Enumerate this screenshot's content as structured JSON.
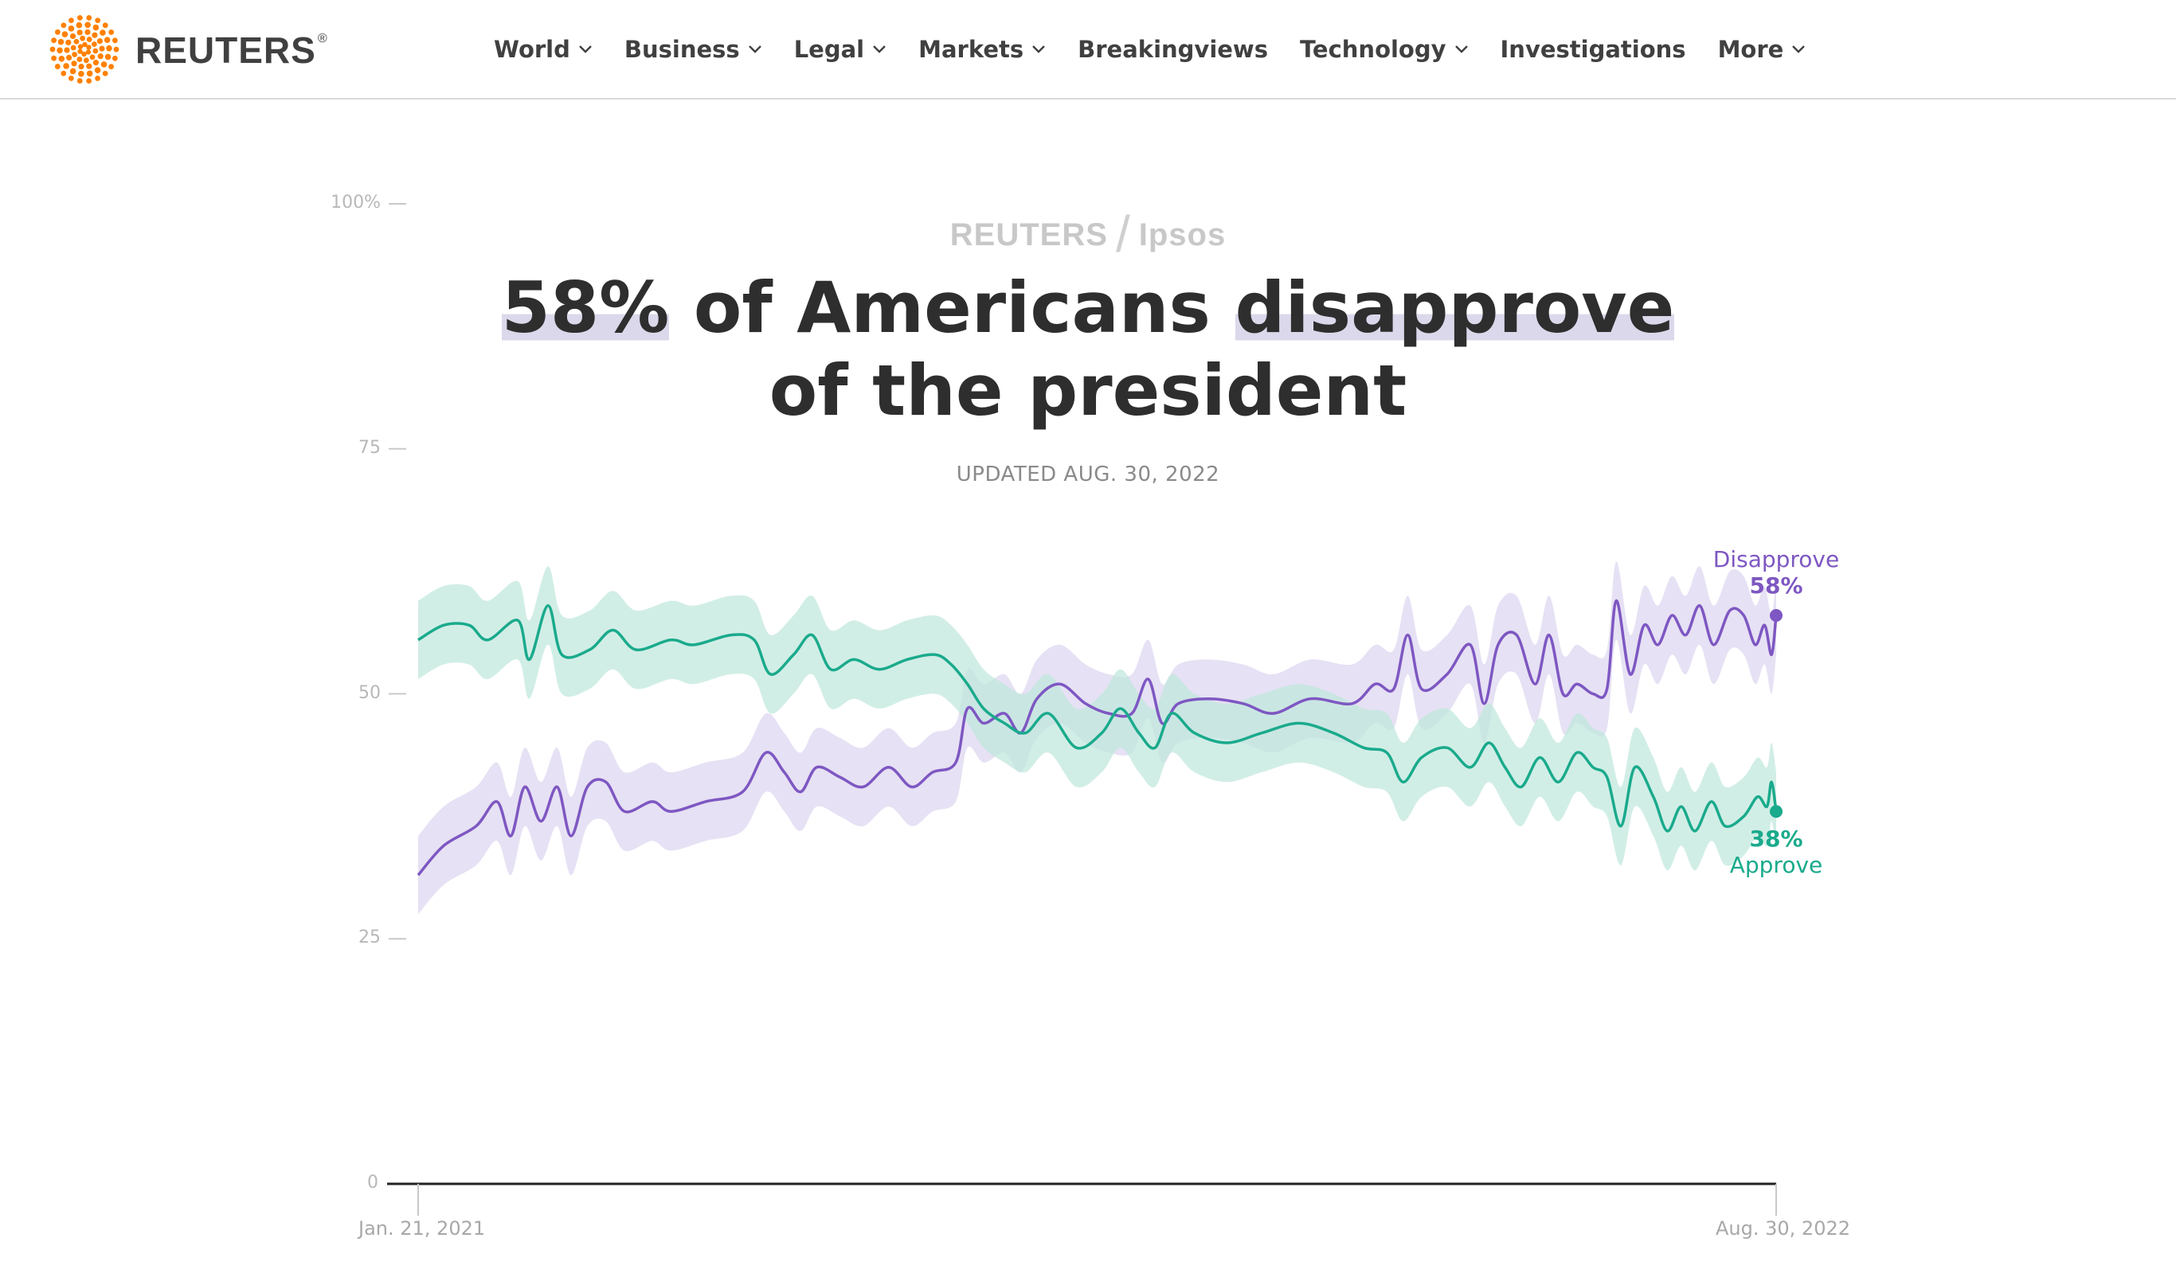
{
  "header": {
    "logo_text": "REUTERS",
    "logo_mark": "®",
    "nav": [
      {
        "label": "World",
        "dropdown": true
      },
      {
        "label": "Business",
        "dropdown": true
      },
      {
        "label": "Legal",
        "dropdown": true
      },
      {
        "label": "Markets",
        "dropdown": true
      },
      {
        "label": "Breakingviews",
        "dropdown": false
      },
      {
        "label": "Technology",
        "dropdown": true
      },
      {
        "label": "Investigations",
        "dropdown": false
      },
      {
        "label": "More",
        "dropdown": true
      }
    ]
  },
  "colors": {
    "brand_orange": "#ff8000",
    "disapprove": "#7e57c2",
    "disapprove_band": "#ddd6f0",
    "approve": "#1aaa8c",
    "approve_band": "#bfe8dd",
    "headline_highlight": "#dcd8eb"
  },
  "chart": {
    "brand_left": "REUTERS",
    "brand_separator": "/",
    "brand_right": "Ipsos",
    "headline_part1": "58%",
    "headline_part2": " of Americans ",
    "headline_part3": "disapprove",
    "headline_line2": "of the president",
    "updated": "UPDATED AUG. 30, 2022",
    "disapprove_label": "Disapprove",
    "disapprove_value": "58%",
    "approve_value": "38%",
    "approve_label": "Approve",
    "x_start_label": "Jan. 21, 2021",
    "x_end_label": "Aug. 30, 2022"
  },
  "chart_data": {
    "type": "area",
    "x_start": "2021-01-21",
    "x_end": "2022-08-30",
    "ylim": [
      0,
      100
    ],
    "yticks": [
      {
        "value": 0,
        "label": "0"
      },
      {
        "value": 25,
        "label": "25"
      },
      {
        "value": 50,
        "label": "50"
      },
      {
        "value": 75,
        "label": "75"
      },
      {
        "value": 100,
        "label": "100%"
      }
    ],
    "series": [
      {
        "name": "Disapprove",
        "color": "#7e57c2",
        "band_color": "#ddd6f0",
        "band_halfwidth": 4,
        "points": [
          [
            "2021-01-21",
            31.5
          ],
          [
            "2021-02-01",
            34.5
          ],
          [
            "2021-02-15",
            36.5
          ],
          [
            "2021-02-24",
            39
          ],
          [
            "2021-03-02",
            35.5
          ],
          [
            "2021-03-08",
            40.5
          ],
          [
            "2021-03-15",
            37
          ],
          [
            "2021-03-22",
            40.5
          ],
          [
            "2021-03-28",
            35.5
          ],
          [
            "2021-04-04",
            40.5
          ],
          [
            "2021-04-12",
            41
          ],
          [
            "2021-04-20",
            38
          ],
          [
            "2021-05-02",
            39
          ],
          [
            "2021-05-10",
            38
          ],
          [
            "2021-05-25",
            39
          ],
          [
            "2021-06-10",
            40
          ],
          [
            "2021-06-20",
            44
          ],
          [
            "2021-06-28",
            42
          ],
          [
            "2021-07-05",
            40
          ],
          [
            "2021-07-12",
            42.5
          ],
          [
            "2021-07-22",
            41.5
          ],
          [
            "2021-08-01",
            40.5
          ],
          [
            "2021-08-12",
            42.5
          ],
          [
            "2021-08-22",
            40.5
          ],
          [
            "2021-08-31",
            42
          ],
          [
            "2021-09-10",
            43
          ],
          [
            "2021-09-15",
            48.5
          ],
          [
            "2021-09-22",
            47
          ],
          [
            "2021-10-01",
            48
          ],
          [
            "2021-10-08",
            46
          ],
          [
            "2021-10-15",
            49.5
          ],
          [
            "2021-10-25",
            51
          ],
          [
            "2021-11-05",
            49
          ],
          [
            "2021-11-15",
            48
          ],
          [
            "2021-11-25",
            48
          ],
          [
            "2021-12-02",
            51.5
          ],
          [
            "2021-12-08",
            47
          ],
          [
            "2021-12-15",
            49
          ],
          [
            "2021-12-28",
            49.5
          ],
          [
            "2022-01-12",
            49
          ],
          [
            "2022-01-25",
            48
          ],
          [
            "2022-02-10",
            49.5
          ],
          [
            "2022-02-28",
            49
          ],
          [
            "2022-03-10",
            51
          ],
          [
            "2022-03-18",
            50.5
          ],
          [
            "2022-03-24",
            56
          ],
          [
            "2022-03-30",
            50.5
          ],
          [
            "2022-04-10",
            52
          ],
          [
            "2022-04-20",
            55
          ],
          [
            "2022-04-26",
            49
          ],
          [
            "2022-05-02",
            55
          ],
          [
            "2022-05-10",
            56
          ],
          [
            "2022-05-18",
            51
          ],
          [
            "2022-05-24",
            56
          ],
          [
            "2022-05-30",
            50
          ],
          [
            "2022-06-05",
            51
          ],
          [
            "2022-06-12",
            50
          ],
          [
            "2022-06-18",
            50.5
          ],
          [
            "2022-06-22",
            59.5
          ],
          [
            "2022-06-28",
            52
          ],
          [
            "2022-07-04",
            57
          ],
          [
            "2022-07-10",
            55
          ],
          [
            "2022-07-16",
            58
          ],
          [
            "2022-07-22",
            56
          ],
          [
            "2022-07-28",
            59
          ],
          [
            "2022-08-03",
            55
          ],
          [
            "2022-08-10",
            58.5
          ],
          [
            "2022-08-16",
            58
          ],
          [
            "2022-08-21",
            55
          ],
          [
            "2022-08-25",
            57
          ],
          [
            "2022-08-28",
            54
          ],
          [
            "2022-08-30",
            58
          ]
        ]
      },
      {
        "name": "Approve",
        "color": "#1aaa8c",
        "band_color": "#bfe8dd",
        "band_halfwidth": 4,
        "points": [
          [
            "2021-01-21",
            55.5
          ],
          [
            "2021-02-01",
            57
          ],
          [
            "2021-02-12",
            57
          ],
          [
            "2021-02-20",
            55.5
          ],
          [
            "2021-03-05",
            57.5
          ],
          [
            "2021-03-10",
            53.5
          ],
          [
            "2021-03-18",
            59
          ],
          [
            "2021-03-24",
            54
          ],
          [
            "2021-04-05",
            54.5
          ],
          [
            "2021-04-15",
            56.5
          ],
          [
            "2021-04-25",
            54.5
          ],
          [
            "2021-05-10",
            55.5
          ],
          [
            "2021-05-20",
            55
          ],
          [
            "2021-06-05",
            56
          ],
          [
            "2021-06-15",
            55.5
          ],
          [
            "2021-06-22",
            52
          ],
          [
            "2021-07-02",
            54
          ],
          [
            "2021-07-10",
            56
          ],
          [
            "2021-07-18",
            52.5
          ],
          [
            "2021-07-28",
            53.5
          ],
          [
            "2021-08-08",
            52.5
          ],
          [
            "2021-08-20",
            53.5
          ],
          [
            "2021-09-01",
            54
          ],
          [
            "2021-09-08",
            53
          ],
          [
            "2021-09-15",
            51
          ],
          [
            "2021-09-22",
            48.5
          ],
          [
            "2021-10-01",
            47
          ],
          [
            "2021-10-10",
            46
          ],
          [
            "2021-10-20",
            48
          ],
          [
            "2021-11-01",
            44.5
          ],
          [
            "2021-11-12",
            46
          ],
          [
            "2021-11-20",
            48.5
          ],
          [
            "2021-11-28",
            46
          ],
          [
            "2021-12-05",
            44.5
          ],
          [
            "2021-12-12",
            48
          ],
          [
            "2021-12-22",
            46
          ],
          [
            "2022-01-05",
            45
          ],
          [
            "2022-01-20",
            46
          ],
          [
            "2022-02-05",
            47
          ],
          [
            "2022-02-20",
            46
          ],
          [
            "2022-03-05",
            44.5
          ],
          [
            "2022-03-15",
            44
          ],
          [
            "2022-03-22",
            41
          ],
          [
            "2022-03-30",
            43.5
          ],
          [
            "2022-04-10",
            44.5
          ],
          [
            "2022-04-20",
            42.5
          ],
          [
            "2022-04-28",
            45
          ],
          [
            "2022-05-05",
            42.5
          ],
          [
            "2022-05-12",
            40.5
          ],
          [
            "2022-05-20",
            43.5
          ],
          [
            "2022-05-28",
            41
          ],
          [
            "2022-06-05",
            44
          ],
          [
            "2022-06-12",
            42.5
          ],
          [
            "2022-06-18",
            41.5
          ],
          [
            "2022-06-24",
            36.5
          ],
          [
            "2022-06-30",
            42.5
          ],
          [
            "2022-07-08",
            39.5
          ],
          [
            "2022-07-14",
            36
          ],
          [
            "2022-07-20",
            38.5
          ],
          [
            "2022-07-26",
            36
          ],
          [
            "2022-08-02",
            39
          ],
          [
            "2022-08-08",
            36.5
          ],
          [
            "2022-08-16",
            37.5
          ],
          [
            "2022-08-22",
            39.5
          ],
          [
            "2022-08-26",
            38.5
          ],
          [
            "2022-08-28",
            41
          ],
          [
            "2022-08-30",
            38
          ]
        ]
      }
    ]
  }
}
